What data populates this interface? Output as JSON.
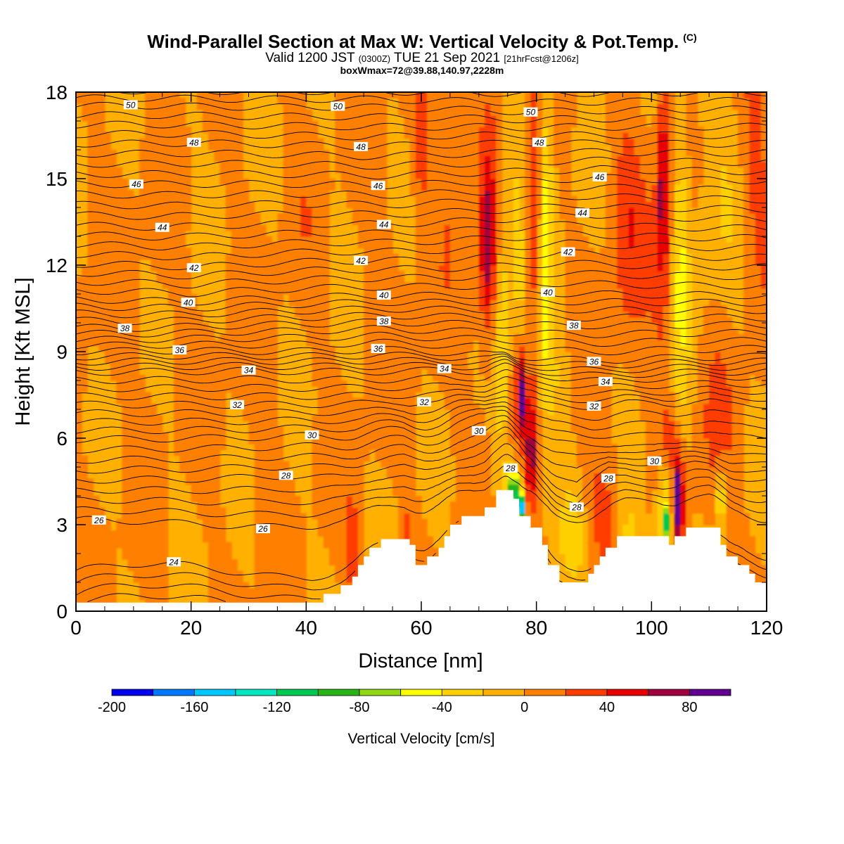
{
  "header": {
    "title": "Wind-Parallel Section at Max W: Vertical Velocity & Pot.Temp.",
    "copyright": "(C)",
    "valid_prefix": "Valid 1200 JST",
    "valid_utc": "(0300Z)",
    "valid_date": "TUE 21 Sep 2021",
    "forecast": "[21hrFcst@1206z]",
    "boxwmax": "boxWmax=72@39.88,140.97,2228m"
  },
  "chart_data": {
    "type": "contour",
    "xlabel": "Distance [nm]",
    "ylabel": "Height [Kft MSL]",
    "xlim": [
      0,
      120
    ],
    "ylim": [
      0,
      18
    ],
    "x_ticks": [
      0,
      20,
      40,
      60,
      80,
      100,
      120
    ],
    "y_ticks": [
      0,
      3,
      6,
      9,
      12,
      15,
      18
    ],
    "x_tick_labels": [
      "0",
      "20",
      "40",
      "60",
      "80",
      "100",
      "120"
    ],
    "y_tick_labels": [
      "0",
      "3",
      "6",
      "9",
      "12",
      "15",
      "18"
    ],
    "colorbar": {
      "label": "Vertical Velocity [cm/s]",
      "boundaries": [
        -200,
        -180,
        -160,
        -140,
        -120,
        -100,
        -80,
        -60,
        -40,
        -20,
        0,
        20,
        40,
        60,
        80,
        100
      ],
      "colors": [
        "#0000ee",
        "#0077ff",
        "#00c8ff",
        "#00e8c0",
        "#00c850",
        "#28b414",
        "#90d814",
        "#ffff00",
        "#ffd000",
        "#ffb000",
        "#ff8000",
        "#ff3c00",
        "#e80000",
        "#a0003c",
        "#600090"
      ],
      "tick_values": [
        -200,
        -160,
        -120,
        -80,
        -40,
        0,
        40,
        80
      ],
      "tick_labels": [
        "-200",
        "-160",
        "-120",
        "-80",
        "-40",
        "0",
        "40",
        "80"
      ]
    },
    "background_color": "#ffb000",
    "terrain": [
      [
        0,
        0.3
      ],
      [
        43,
        0.3
      ],
      [
        43,
        0.6
      ],
      [
        46,
        0.6
      ],
      [
        46,
        0.9
      ],
      [
        48,
        0.9
      ],
      [
        48,
        1.2
      ],
      [
        49,
        1.2
      ],
      [
        49,
        1.6
      ],
      [
        50,
        1.6
      ],
      [
        50,
        1.9
      ],
      [
        51,
        1.9
      ],
      [
        51,
        2.2
      ],
      [
        53,
        2.2
      ],
      [
        53,
        2.5
      ],
      [
        58,
        2.5
      ],
      [
        58,
        2.3
      ],
      [
        59,
        2.3
      ],
      [
        59,
        1.6
      ],
      [
        61,
        1.6
      ],
      [
        61,
        1.9
      ],
      [
        63,
        1.9
      ],
      [
        63,
        2.2
      ],
      [
        64,
        2.2
      ],
      [
        64,
        2.6
      ],
      [
        65,
        2.6
      ],
      [
        65,
        3.0
      ],
      [
        67,
        3.0
      ],
      [
        67,
        3.3
      ],
      [
        71,
        3.3
      ],
      [
        71,
        3.6
      ],
      [
        73,
        3.6
      ],
      [
        73,
        4.2
      ],
      [
        76,
        4.2
      ],
      [
        76,
        3.9
      ],
      [
        77,
        3.9
      ],
      [
        77,
        3.3
      ],
      [
        79,
        3.3
      ],
      [
        79,
        2.9
      ],
      [
        81,
        2.9
      ],
      [
        81,
        2.3
      ],
      [
        82,
        2.3
      ],
      [
        82,
        1.6
      ],
      [
        84,
        1.6
      ],
      [
        84,
        1.0
      ],
      [
        89,
        1.0
      ],
      [
        89,
        1.3
      ],
      [
        90,
        1.3
      ],
      [
        90,
        1.6
      ],
      [
        91,
        1.6
      ],
      [
        91,
        1.9
      ],
      [
        92,
        1.9
      ],
      [
        92,
        2.2
      ],
      [
        94,
        2.2
      ],
      [
        94,
        2.6
      ],
      [
        103,
        2.6
      ],
      [
        103,
        2.3
      ],
      [
        104,
        2.3
      ],
      [
        104,
        2.6
      ],
      [
        106,
        2.6
      ],
      [
        106,
        2.9
      ],
      [
        112,
        2.9
      ],
      [
        112,
        2.3
      ],
      [
        113,
        2.3
      ],
      [
        113,
        1.9
      ],
      [
        115,
        1.9
      ],
      [
        115,
        1.6
      ],
      [
        117,
        1.6
      ],
      [
        117,
        1.3
      ],
      [
        118,
        1.3
      ],
      [
        118,
        1.0
      ],
      [
        120,
        1.0
      ]
    ],
    "w_features": [
      {
        "x": 4,
        "y": 9.5,
        "rx": 6,
        "ry": 6,
        "w": 5
      },
      {
        "x": 14,
        "y": 12,
        "rx": 3,
        "ry": 7,
        "w": 8
      },
      {
        "x": 28,
        "y": 8,
        "rx": 6,
        "ry": 8,
        "w": 4
      },
      {
        "x": 33,
        "y": 6,
        "rx": 2.5,
        "ry": 6,
        "w": 8
      },
      {
        "x": 40,
        "y": 14,
        "rx": 4,
        "ry": 5,
        "w": 7
      },
      {
        "x": 47,
        "y": 4,
        "rx": 5,
        "ry": 3,
        "w": 5
      },
      {
        "x": 53,
        "y": 12,
        "rx": 4,
        "ry": 6,
        "w": 7
      },
      {
        "x": 62,
        "y": 10,
        "rx": 6,
        "ry": 6,
        "w": 6
      },
      {
        "x": 3,
        "y": 2,
        "rx": 4,
        "ry": 2,
        "w": 4
      },
      {
        "x": 120,
        "y": 11,
        "rx": 3,
        "ry": 5,
        "w": 5
      },
      {
        "x": 111,
        "y": 15,
        "rx": 4,
        "ry": 6,
        "w": -15
      },
      {
        "x": 118,
        "y": 15,
        "rx": 2.5,
        "ry": 4,
        "w": 25
      },
      {
        "x": 96,
        "y": 10,
        "rx": 6,
        "ry": 5,
        "w": 8
      },
      {
        "x": 96,
        "y": 14,
        "rx": 3,
        "ry": 4,
        "w": 25
      },
      {
        "x": 60,
        "y": 16.5,
        "rx": 1.5,
        "ry": 2.5,
        "w": 35
      },
      {
        "x": 66,
        "y": 16,
        "rx": 2.5,
        "ry": 3,
        "w": 25
      },
      {
        "x": 72,
        "y": 13,
        "rx": 2.5,
        "ry": 5,
        "w": 35
      },
      {
        "x": 71.5,
        "y": 12.5,
        "rx": 1.2,
        "ry": 2.5,
        "w": 45
      },
      {
        "x": 74,
        "y": 11,
        "rx": 1.5,
        "ry": 6,
        "w": -40
      },
      {
        "x": 77,
        "y": 11,
        "rx": 1.5,
        "ry": 6,
        "w": -45
      },
      {
        "x": 78.5,
        "y": 14,
        "rx": 1.3,
        "ry": 5,
        "w": 30
      },
      {
        "x": 80,
        "y": 14,
        "rx": 0.8,
        "ry": 5,
        "w": 55
      },
      {
        "x": 81.5,
        "y": 13,
        "rx": 1.5,
        "ry": 6,
        "w": -45
      },
      {
        "x": 76.5,
        "y": 8,
        "rx": 1.2,
        "ry": 3,
        "w": 45
      },
      {
        "x": 77.5,
        "y": 7.5,
        "rx": 0.7,
        "ry": 1.5,
        "w": 85
      },
      {
        "x": 79,
        "y": 5.5,
        "rx": 0.8,
        "ry": 2,
        "w": 75
      },
      {
        "x": 76.5,
        "y": 4,
        "rx": 1,
        "ry": 0.7,
        "w": -85
      },
      {
        "x": 77.5,
        "y": 3.6,
        "rx": 0.6,
        "ry": 0.4,
        "w": -125
      },
      {
        "x": 75.5,
        "y": 4.3,
        "rx": 1,
        "ry": 0.8,
        "w": -50
      },
      {
        "x": 83,
        "y": 8,
        "rx": 3,
        "ry": 2,
        "w": -15
      },
      {
        "x": 91,
        "y": 3.5,
        "rx": 2.5,
        "ry": 2,
        "w": 25
      },
      {
        "x": 86,
        "y": 2.5,
        "rx": 2,
        "ry": 1.5,
        "w": -30
      },
      {
        "x": 96,
        "y": 2.5,
        "rx": 2,
        "ry": 1.5,
        "w": -30
      },
      {
        "x": 102.5,
        "y": 3.5,
        "rx": 1.5,
        "ry": 2,
        "w": -55
      },
      {
        "x": 102.3,
        "y": 3.1,
        "rx": 0.6,
        "ry": 0.5,
        "w": -90
      },
      {
        "x": 104.5,
        "y": 4,
        "rx": 1.3,
        "ry": 2.2,
        "w": 45
      },
      {
        "x": 104.8,
        "y": 3.8,
        "rx": 0.6,
        "ry": 1.3,
        "w": 90
      },
      {
        "x": 103,
        "y": 6,
        "rx": 1,
        "ry": 1,
        "w": 30
      },
      {
        "x": 102,
        "y": 13,
        "rx": 2,
        "ry": 5,
        "w": 30
      },
      {
        "x": 102,
        "y": 15,
        "rx": 0.8,
        "ry": 3,
        "w": 55
      },
      {
        "x": 105,
        "y": 12,
        "rx": 1.5,
        "ry": 6,
        "w": -40
      },
      {
        "x": 111,
        "y": 6,
        "rx": 3,
        "ry": 4,
        "w": 25
      },
      {
        "x": 112,
        "y": 4,
        "rx": 1,
        "ry": 1.2,
        "w": -50
      },
      {
        "x": 48,
        "y": 2.2,
        "rx": 1.2,
        "ry": 1.5,
        "w": 35
      },
      {
        "x": 57.5,
        "y": 2.8,
        "rx": 1,
        "ry": 0.6,
        "w": 35
      },
      {
        "x": 88,
        "y": 6,
        "rx": 2,
        "ry": 2,
        "w": 10
      }
    ],
    "isentrope_start": 24,
    "isentrope_step": 0.5,
    "isentrope_label_step": 2,
    "isentrope_labels": [
      {
        "text": "50",
        "x": 9.5,
        "y": 17.55
      },
      {
        "text": "50",
        "x": 45.5,
        "y": 17.5
      },
      {
        "text": "50",
        "x": 79,
        "y": 17.3
      },
      {
        "text": "48",
        "x": 20.5,
        "y": 16.25
      },
      {
        "text": "48",
        "x": 49.5,
        "y": 16.1
      },
      {
        "text": "48",
        "x": 80.5,
        "y": 16.25
      },
      {
        "text": "46",
        "x": 10.5,
        "y": 14.8
      },
      {
        "text": "46",
        "x": 52.5,
        "y": 14.75
      },
      {
        "text": "46",
        "x": 91,
        "y": 15.05
      },
      {
        "text": "44",
        "x": 15,
        "y": 13.3
      },
      {
        "text": "44",
        "x": 53.5,
        "y": 13.4
      },
      {
        "text": "44",
        "x": 88,
        "y": 13.8
      },
      {
        "text": "42",
        "x": 20.5,
        "y": 11.9
      },
      {
        "text": "42",
        "x": 49.5,
        "y": 12.15
      },
      {
        "text": "42",
        "x": 85.5,
        "y": 12.45
      },
      {
        "text": "40",
        "x": 19.5,
        "y": 10.7
      },
      {
        "text": "40",
        "x": 53.5,
        "y": 10.95
      },
      {
        "text": "40",
        "x": 82,
        "y": 11.05
      },
      {
        "text": "38",
        "x": 8.5,
        "y": 9.8
      },
      {
        "text": "38",
        "x": 53.5,
        "y": 10.05
      },
      {
        "text": "38",
        "x": 86.5,
        "y": 9.9
      },
      {
        "text": "36",
        "x": 18,
        "y": 9.05
      },
      {
        "text": "36",
        "x": 52.5,
        "y": 9.1
      },
      {
        "text": "36",
        "x": 90,
        "y": 8.65
      },
      {
        "text": "34",
        "x": 30,
        "y": 8.35
      },
      {
        "text": "34",
        "x": 64,
        "y": 8.4
      },
      {
        "text": "34",
        "x": 92,
        "y": 7.95
      },
      {
        "text": "32",
        "x": 28,
        "y": 7.15
      },
      {
        "text": "32",
        "x": 60.5,
        "y": 7.25
      },
      {
        "text": "32",
        "x": 90,
        "y": 7.1
      },
      {
        "text": "30",
        "x": 41,
        "y": 6.1
      },
      {
        "text": "30",
        "x": 70,
        "y": 6.25
      },
      {
        "text": "30",
        "x": 100.5,
        "y": 5.2
      },
      {
        "text": "28",
        "x": 36.5,
        "y": 4.7
      },
      {
        "text": "28",
        "x": 75.5,
        "y": 4.95
      },
      {
        "text": "28",
        "x": 92.5,
        "y": 4.6
      },
      {
        "text": "28",
        "x": 87,
        "y": 3.6
      },
      {
        "text": "26",
        "x": 4,
        "y": 3.15
      },
      {
        "text": "26",
        "x": 32.5,
        "y": 2.85
      },
      {
        "text": "24",
        "x": 17,
        "y": 1.7
      }
    ]
  }
}
